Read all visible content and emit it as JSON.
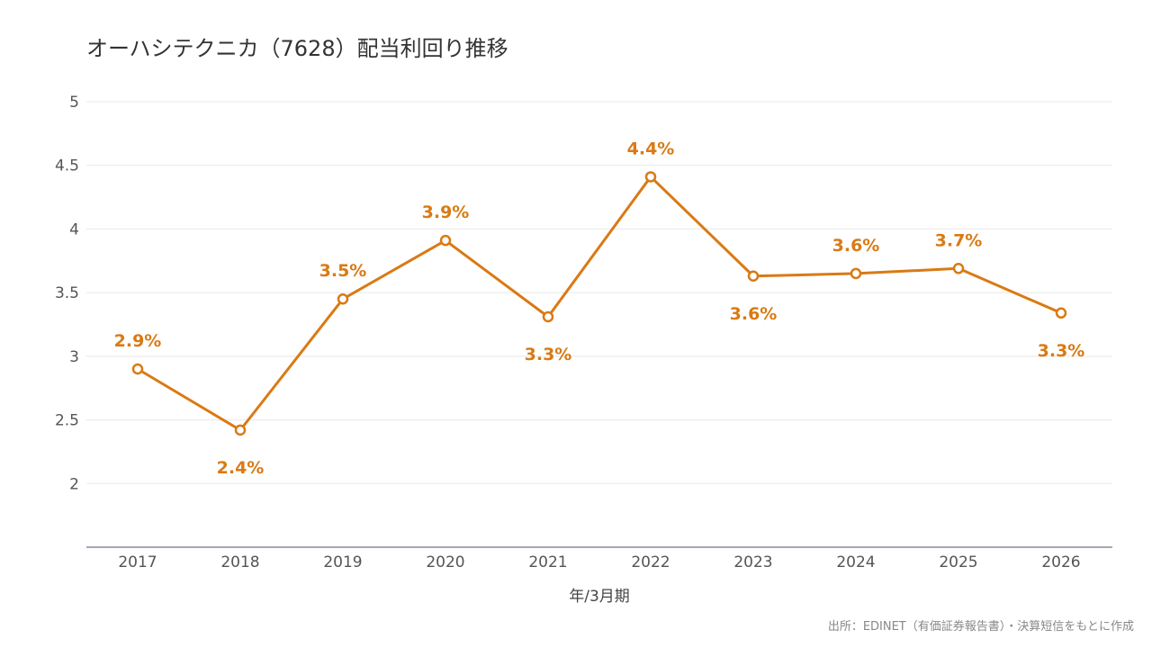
{
  "chart_data": {
    "type": "line",
    "title": "オーハシテクニカ（7628）配当利回り推移",
    "xlabel": "年/3月期",
    "ylabel": "",
    "categories": [
      "2017",
      "2018",
      "2019",
      "2020",
      "2021",
      "2022",
      "2023",
      "2024",
      "2025",
      "2026"
    ],
    "series": [
      {
        "values": [
          2.9,
          2.42,
          3.45,
          3.91,
          3.31,
          4.41,
          3.63,
          3.65,
          3.69,
          3.34
        ],
        "labels": [
          "2.9%",
          "2.4%",
          "3.5%",
          "3.9%",
          "3.3%",
          "4.4%",
          "3.6%",
          "3.6%",
          "3.7%",
          "3.3%"
        ],
        "label_positions": [
          "above",
          "below",
          "above",
          "above",
          "below",
          "above",
          "below",
          "above",
          "above",
          "below"
        ],
        "color": "#d97a14"
      }
    ],
    "ylim": [
      1.5,
      5
    ],
    "yticks": [
      2,
      2.5,
      3,
      3.5,
      4,
      4.5,
      5
    ],
    "ytick_labels": [
      "2",
      "2.5",
      "3",
      "3.5",
      "4",
      "4.5",
      "5"
    ],
    "grid": true,
    "legend": "none"
  },
  "source_note": "出所：EDINET（有価証券報告書）・決算短信をもとに作成",
  "colors": {
    "line": "#d97a14",
    "grid": "#e8e8e8",
    "axis": "#8a8aa0",
    "text": "#555555"
  }
}
